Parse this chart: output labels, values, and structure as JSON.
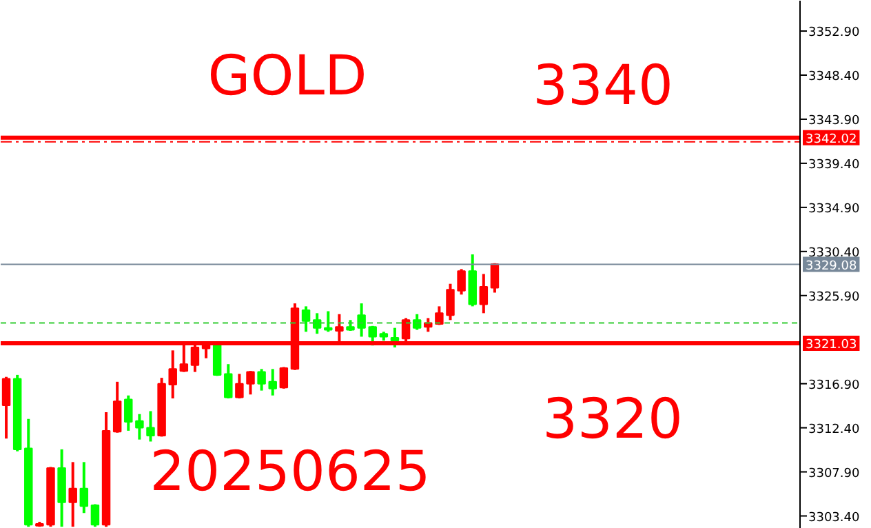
{
  "chart_data": {
    "type": "candlestick",
    "annotations": [
      "GOLD",
      "3340",
      "3320",
      "20250625"
    ],
    "categories": [
      null,
      null,
      null,
      null,
      null,
      null,
      null,
      null,
      null,
      null,
      null,
      null,
      null,
      null,
      null,
      null,
      null,
      null,
      null,
      null,
      null,
      null,
      null,
      null,
      null,
      null,
      null,
      null,
      null,
      null,
      null,
      null,
      null,
      null,
      null,
      null,
      null,
      null,
      null,
      null,
      null,
      null,
      null,
      null,
      null,
      null,
      null,
      null,
      null,
      null,
      null,
      null,
      null,
      null,
      null,
      null,
      null,
      null,
      null,
      null,
      null,
      null,
      null,
      null,
      null,
      null,
      null,
      null,
      null,
      null,
      null,
      null
    ],
    "ylim": [
      3302.1,
      3356.0
    ],
    "yticks": [
      {
        "value": 3303.4,
        "label": "3303.40"
      },
      {
        "value": 3307.9,
        "label": "3307.90"
      },
      {
        "value": 3312.4,
        "label": "3312.40"
      },
      {
        "value": 3316.9,
        "label": "3316.90"
      },
      {
        "value": 3325.9,
        "label": "3325.90"
      },
      {
        "value": 3330.4,
        "label": "3330.40"
      },
      {
        "value": 3334.9,
        "label": "3334.90"
      },
      {
        "value": 3339.4,
        "label": "3339.40"
      },
      {
        "value": 3343.9,
        "label": "3343.90"
      },
      {
        "value": 3348.4,
        "label": "3348.40"
      },
      {
        "value": 3352.9,
        "label": "3352.90"
      }
    ],
    "tick_labels": "y",
    "ohlc": [
      [
        3314.7,
        3317.6,
        3311.3,
        3317.4
      ],
      [
        3317.4,
        3317.8,
        3310.0,
        3310.2
      ],
      [
        3310.3,
        3313.3,
        3302.3,
        3302.5
      ],
      [
        3302.4,
        3302.8,
        3302.3,
        3302.6
      ],
      [
        3302.5,
        3308.4,
        3302.3,
        3308.3
      ],
      [
        3308.3,
        3310.2,
        3302.3,
        3304.8
      ],
      [
        3304.8,
        3308.9,
        3302.3,
        3306.2
      ],
      [
        3306.2,
        3308.9,
        3303.7,
        3304.4
      ],
      [
        3304.5,
        3304.6,
        3302.3,
        3302.5
      ],
      [
        3302.5,
        3314.0,
        3302.3,
        3312.1
      ],
      [
        3312.0,
        3317.1,
        3311.9,
        3315.1
      ],
      [
        3315.3,
        3315.7,
        3312.1,
        3313.0
      ],
      [
        3313.1,
        3313.8,
        3311.2,
        3312.4
      ],
      [
        3312.4,
        3314.1,
        3311.0,
        3311.6
      ],
      [
        3311.6,
        3317.5,
        3311.5,
        3316.9
      ],
      [
        3316.8,
        3320.3,
        3315.4,
        3318.4
      ],
      [
        3318.2,
        3320.9,
        3318.1,
        3318.9
      ],
      [
        3318.8,
        3320.9,
        3318.1,
        3320.6
      ],
      [
        3320.5,
        3321.0,
        3319.5,
        3320.9
      ],
      [
        3320.9,
        3321.0,
        3317.7,
        3317.8
      ],
      [
        3317.9,
        3318.9,
        3315.4,
        3315.5
      ],
      [
        3315.5,
        3317.9,
        3315.4,
        3316.9
      ],
      [
        3316.9,
        3318.2,
        3315.8,
        3318.1
      ],
      [
        3318.1,
        3318.4,
        3316.2,
        3316.9
      ],
      [
        3317.1,
        3318.4,
        3315.7,
        3316.4
      ],
      [
        3316.5,
        3318.6,
        3316.4,
        3318.5
      ],
      [
        3318.4,
        3325.1,
        3318.3,
        3324.6
      ],
      [
        3324.4,
        3324.8,
        3322.2,
        3323.3
      ],
      [
        3323.4,
        3324.1,
        3322.0,
        3322.6
      ],
      [
        3322.6,
        3324.3,
        3322.2,
        3322.4
      ],
      [
        3322.3,
        3324.0,
        3321.2,
        3322.7
      ],
      [
        3322.7,
        3323.4,
        3322.3,
        3322.4
      ],
      [
        3323.9,
        3325.1,
        3321.7,
        3322.6
      ],
      [
        3322.7,
        3322.8,
        3320.8,
        3321.7
      ],
      [
        3322.0,
        3322.2,
        3321.3,
        3321.7
      ],
      [
        3321.6,
        3322.6,
        3320.6,
        3321.3
      ],
      [
        3321.5,
        3323.6,
        3321.2,
        3323.4
      ],
      [
        3323.4,
        3324.0,
        3322.4,
        3322.6
      ],
      [
        3322.7,
        3323.6,
        3322.2,
        3323.1
      ],
      [
        3323.0,
        3324.8,
        3322.9,
        3324.1
      ],
      [
        3323.9,
        3327.1,
        3323.4,
        3326.5
      ],
      [
        3326.4,
        3328.6,
        3326.0,
        3328.4
      ],
      [
        3328.4,
        3330.1,
        3324.8,
        3325.0
      ],
      [
        3325.0,
        3328.1,
        3324.1,
        3326.8
      ],
      [
        3326.7,
        3329.2,
        3326.2,
        3329.1
      ],
      null,
      null,
      null,
      null,
      null,
      null,
      null,
      null,
      null,
      null,
      null,
      null,
      null,
      null,
      null,
      null,
      null,
      null,
      null,
      null,
      null,
      null,
      null,
      null,
      null,
      null,
      null
    ],
    "colors": [
      "#ff0000",
      "#00ff00",
      "#00ff00",
      "#ff0000",
      "#ff0000",
      "#00ff00",
      "#ff0000",
      "#00ff00",
      "#00ff00",
      "#ff0000",
      "#ff0000",
      "#00ff00",
      "#00ff00",
      "#00ff00",
      "#ff0000",
      "#ff0000",
      "#ff0000",
      "#ff0000",
      "#ff0000",
      "#00ff00",
      "#00ff00",
      "#ff0000",
      "#ff0000",
      "#00ff00",
      "#00ff00",
      "#ff0000",
      "#ff0000",
      "#00ff00",
      "#00ff00",
      "#00ff00",
      "#ff0000",
      "#00ff00",
      "#00ff00",
      "#00ff00",
      "#00ff00",
      "#00ff00",
      "#ff0000",
      "#00ff00",
      "#ff0000",
      "#ff0000",
      "#ff0000",
      "#ff0000",
      "#00ff00",
      "#ff0000",
      "#ff0000",
      null,
      null,
      null,
      null,
      null,
      null,
      null,
      null,
      null,
      null,
      null,
      null,
      null,
      null,
      null,
      null,
      null,
      null,
      null,
      null,
      null,
      null,
      null,
      null,
      null,
      null,
      null
    ],
    "ref_lines": [
      {
        "axis": "y",
        "value": 3342.02,
        "label": "3342.02",
        "color": "#ff0000",
        "line_style": "solid"
      },
      {
        "axis": "y",
        "value": 3341.6,
        "label": null,
        "color": "#ff0000",
        "line_style": "dashdot"
      },
      {
        "axis": "y",
        "value": 3329.08,
        "label": "3329.08",
        "color": "#778899",
        "line_style": "solid"
      },
      {
        "axis": "y",
        "value": 3323.1,
        "label": null,
        "color": "#33cc33",
        "line_style": "dashed"
      },
      {
        "axis": "y",
        "value": 3321.03,
        "label": "3321.03",
        "color": "#ff0000",
        "line_style": "solid"
      }
    ],
    "grid": false
  }
}
